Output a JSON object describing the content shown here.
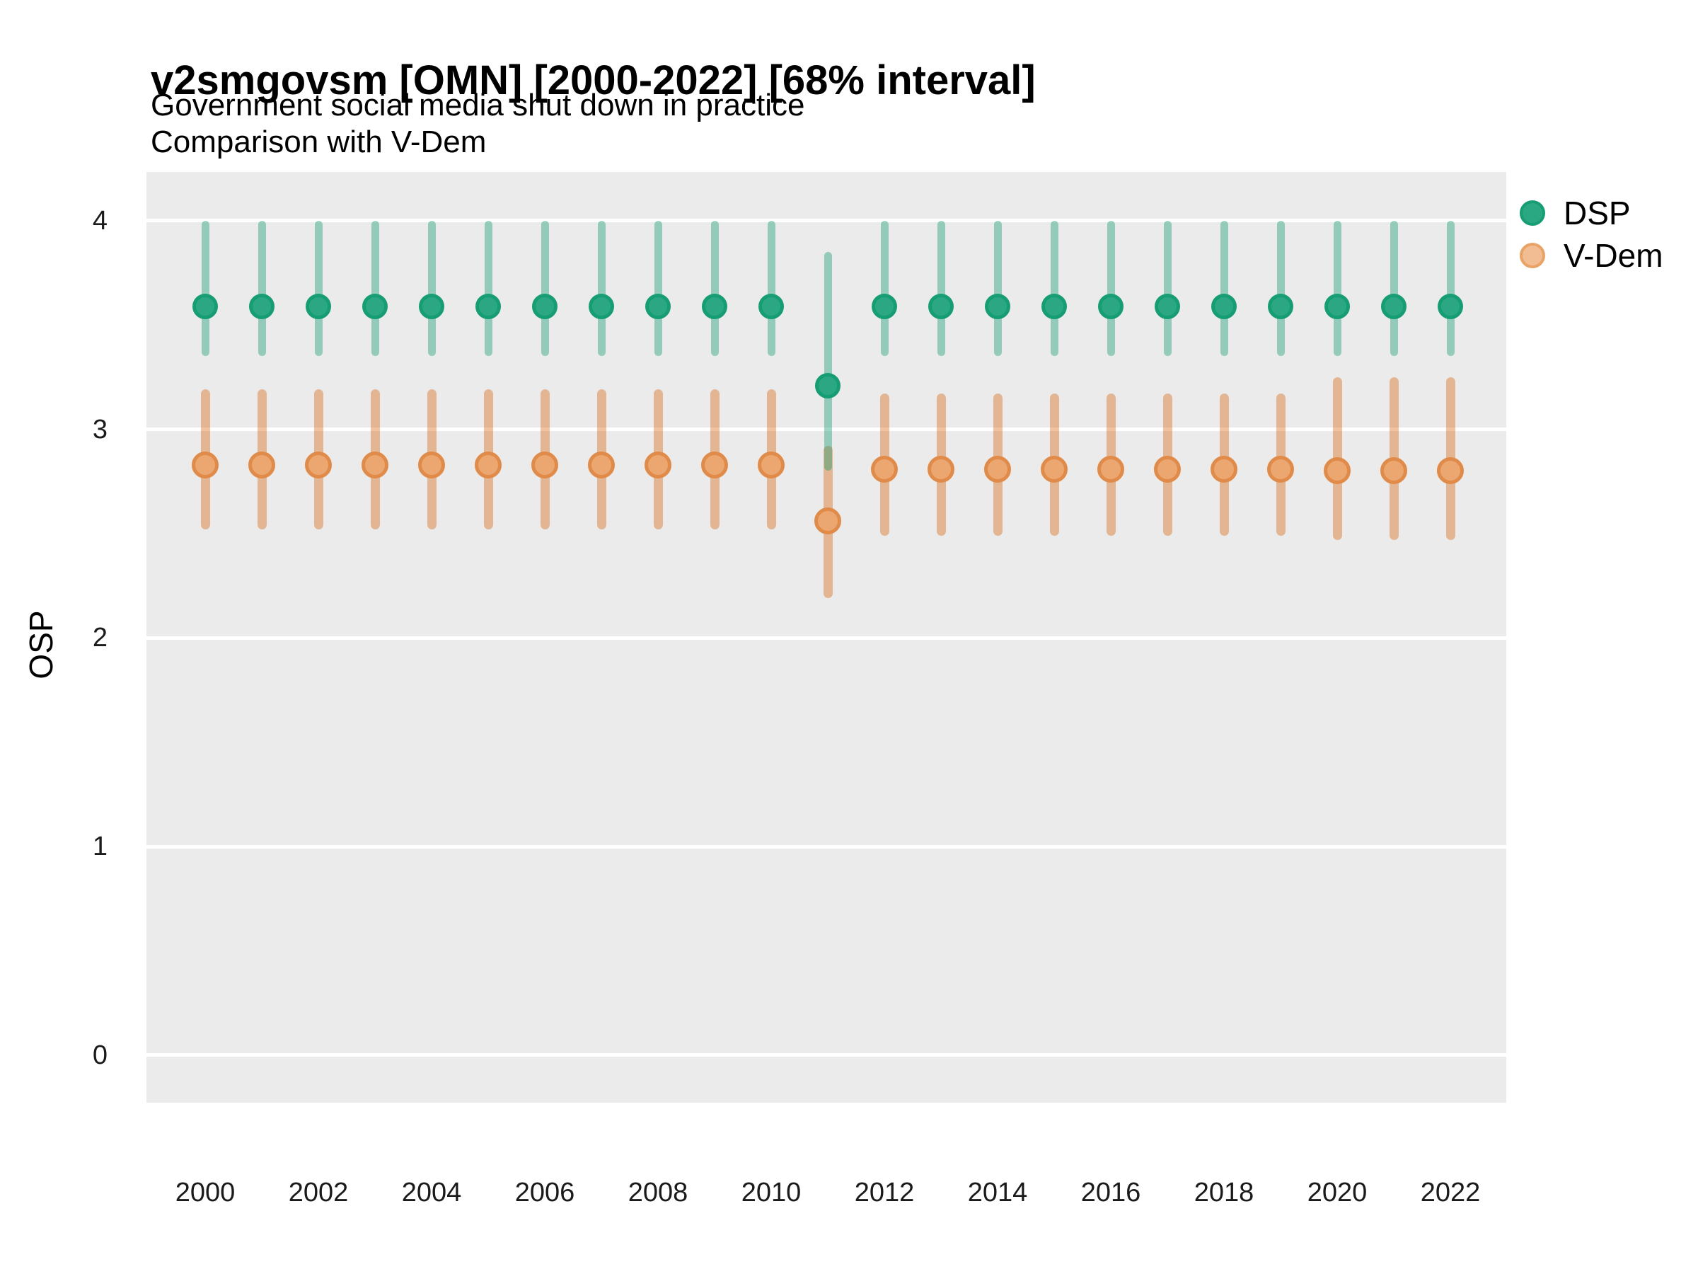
{
  "title": "v2smgovsm [OMN] [2000-2022] [68% interval]",
  "subtitle1": "Government social media shut down in practice",
  "subtitle2": "Comparison with V-Dem",
  "legend": {
    "items": [
      {
        "label": "DSP"
      },
      {
        "label": "V-Dem"
      }
    ]
  },
  "colors": {
    "background": "#ffffff",
    "panel": "#ebebeb",
    "grid": "#ffffff",
    "dsp_point_fill": "#2ba883",
    "dsp_point_border": "#179d73",
    "dsp_bar": "rgba(27,158,119,0.42)",
    "vdem_point_fill": "#eba76f",
    "vdem_point_border": "#e08b49",
    "vdem_bar": "rgba(217,95,2,0.38)",
    "legend_dsp_fill": "#2aa881",
    "legend_dsp_border": "#179d73",
    "legend_vdem_fill": "#f2bd92",
    "legend_vdem_border": "#e9a367"
  },
  "chart_data": {
    "type": "pointrange",
    "title": "v2smgovsm [OMN] [2000-2022] [68% interval]",
    "subtitle": [
      "Government social media shut down in practice",
      "Comparison with V-Dem"
    ],
    "xlabel": "",
    "ylabel": "OSP",
    "ylim": [
      0,
      4
    ],
    "interval": "68%",
    "grid": "horizontal-major-only",
    "legend_position": "right",
    "x": [
      2000,
      2001,
      2002,
      2003,
      2004,
      2005,
      2006,
      2007,
      2008,
      2009,
      2010,
      2011,
      2012,
      2013,
      2014,
      2015,
      2016,
      2017,
      2018,
      2019,
      2020,
      2021,
      2022
    ],
    "x_ticks": [
      2000,
      2002,
      2004,
      2006,
      2008,
      2010,
      2012,
      2014,
      2016,
      2018,
      2020,
      2022
    ],
    "y_ticks": [
      0,
      1,
      2,
      3,
      4
    ],
    "series": [
      {
        "name": "DSP",
        "key": "dsp",
        "values": [
          3.59,
          3.59,
          3.59,
          3.59,
          3.59,
          3.59,
          3.59,
          3.59,
          3.59,
          3.59,
          3.59,
          3.21,
          3.59,
          3.59,
          3.59,
          3.59,
          3.59,
          3.59,
          3.59,
          3.59,
          3.59,
          3.59,
          3.59
        ],
        "lower": [
          3.35,
          3.35,
          3.35,
          3.35,
          3.35,
          3.35,
          3.35,
          3.35,
          3.35,
          3.35,
          3.35,
          2.8,
          3.35,
          3.35,
          3.35,
          3.35,
          3.35,
          3.35,
          3.35,
          3.35,
          3.35,
          3.35,
          3.35
        ],
        "upper": [
          4.0,
          4.0,
          4.0,
          4.0,
          4.0,
          4.0,
          4.0,
          4.0,
          4.0,
          4.0,
          4.0,
          3.85,
          4.0,
          4.0,
          4.0,
          4.0,
          4.0,
          4.0,
          4.0,
          4.0,
          4.0,
          4.0,
          4.0
        ]
      },
      {
        "name": "V-Dem",
        "key": "vdem",
        "values": [
          2.83,
          2.83,
          2.83,
          2.83,
          2.83,
          2.83,
          2.83,
          2.83,
          2.83,
          2.83,
          2.83,
          2.56,
          2.81,
          2.81,
          2.81,
          2.81,
          2.81,
          2.81,
          2.81,
          2.81,
          2.8,
          2.8,
          2.8
        ],
        "lower": [
          2.52,
          2.52,
          2.52,
          2.52,
          2.52,
          2.52,
          2.52,
          2.52,
          2.52,
          2.52,
          2.52,
          2.19,
          2.49,
          2.49,
          2.49,
          2.49,
          2.49,
          2.49,
          2.49,
          2.49,
          2.47,
          2.47,
          2.47
        ],
        "upper": [
          3.19,
          3.19,
          3.19,
          3.19,
          3.19,
          3.19,
          3.19,
          3.19,
          3.19,
          3.19,
          3.19,
          2.92,
          3.17,
          3.17,
          3.17,
          3.17,
          3.17,
          3.17,
          3.17,
          3.17,
          3.25,
          3.25,
          3.25
        ]
      }
    ]
  }
}
